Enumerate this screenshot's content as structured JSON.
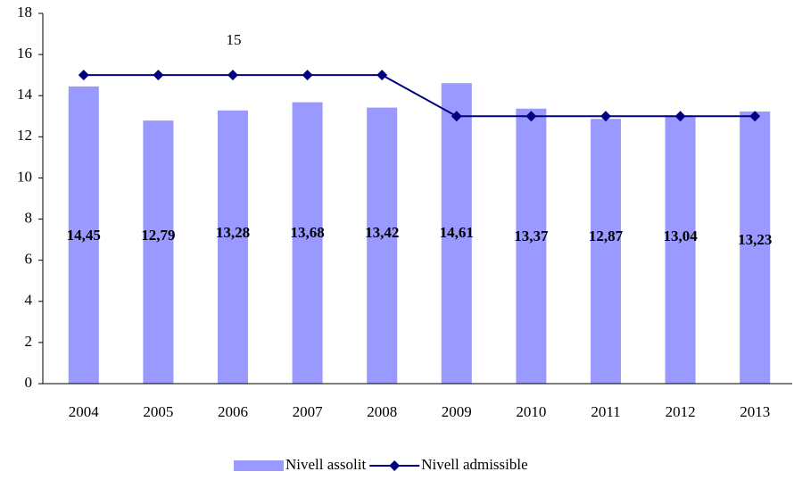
{
  "chart_data": {
    "type": "bar",
    "categories": [
      "2004",
      "2005",
      "2006",
      "2007",
      "2008",
      "2009",
      "2010",
      "2011",
      "2012",
      "2013"
    ],
    "series": [
      {
        "name": "Nivell assolit",
        "type": "bar",
        "color": "#9999ff",
        "values": [
          14.45,
          12.79,
          13.28,
          13.68,
          13.42,
          14.61,
          13.37,
          12.87,
          13.04,
          13.23
        ],
        "value_labels": [
          "14,45",
          "12,79",
          "13,28",
          "13,68",
          "13,42",
          "14,61",
          "13,37",
          "12,87",
          "13,04",
          "13,23"
        ]
      },
      {
        "name": "Nivell admissible",
        "type": "line",
        "color": "#000080",
        "values": [
          15,
          15,
          15,
          15,
          15,
          13,
          13,
          13,
          13,
          13
        ]
      }
    ],
    "annotations": [
      "15"
    ],
    "ylim": [
      0,
      18
    ],
    "yticks": [
      0,
      2,
      4,
      6,
      8,
      10,
      12,
      14,
      16,
      18
    ],
    "legend": "bottom"
  }
}
